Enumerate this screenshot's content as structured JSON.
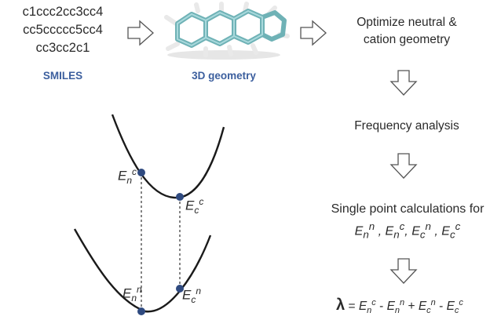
{
  "smiles": {
    "lines": [
      "c1ccc2cc3cc4",
      "cc5ccccc5cc4",
      "cc3cc2c1"
    ],
    "label": "SMILES"
  },
  "geometry": {
    "label": "3D geometry"
  },
  "workflow": {
    "step1_line1": "Optimize neutral &",
    "step1_line2": "cation geometry",
    "step2": "Frequency analysis",
    "step3_line1": "Single point calculations for"
  },
  "energies": {
    "E": "E",
    "n": "n",
    "c": "c"
  },
  "equation": {
    "lambda": "λ",
    "eq": "="
  },
  "colors": {
    "accent": "#3c5f9e",
    "point": "#2f4a80",
    "molecule": "#7fbcc0"
  }
}
